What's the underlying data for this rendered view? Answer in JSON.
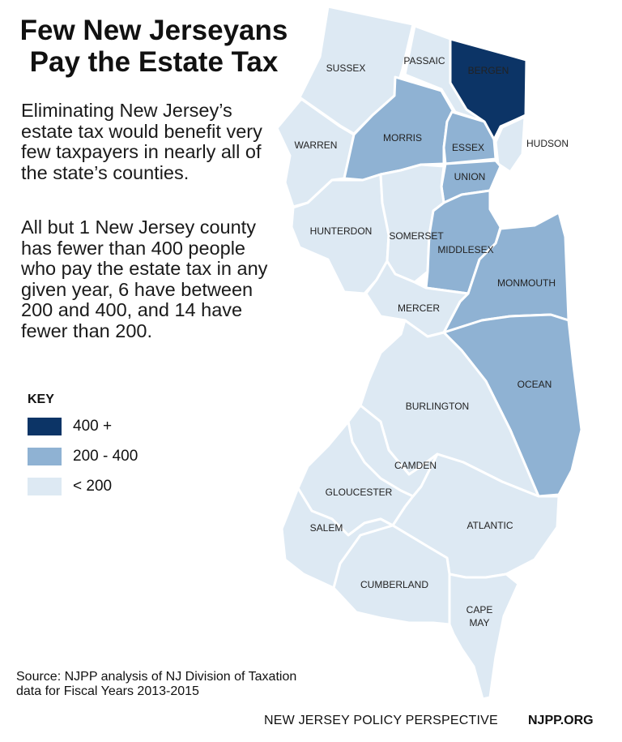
{
  "title_line1": "Few New Jerseyans",
  "title_line2": "Pay the Estate Tax",
  "intro": "Eliminating New Jersey’s estate tax would benefit very few taxpayers in nearly all of the state’s counties.",
  "detail": "All but 1 New Jersey county has fewer than 400 people who pay the estate tax in any given year, 6 have between 200 and 400, and 14 have fewer than 200.",
  "key": {
    "title": "KEY",
    "items": [
      {
        "label": "400 +",
        "color": "#0c3466"
      },
      {
        "label": "200 - 400",
        "color": "#8fb2d3"
      },
      {
        "label": "< 200",
        "color": "#dde9f3"
      }
    ]
  },
  "counties": {
    "sussex": {
      "name": "SUSSEX",
      "category": "< 200"
    },
    "passaic": {
      "name": "PASSAIC",
      "category": "< 200"
    },
    "bergen": {
      "name": "BERGEN",
      "category": "400 +"
    },
    "warren": {
      "name": "WARREN",
      "category": "< 200"
    },
    "morris": {
      "name": "MORRIS",
      "category": "200 - 400"
    },
    "essex": {
      "name": "ESSEX",
      "category": "200 - 400"
    },
    "hudson": {
      "name": "HUDSON",
      "category": "< 200"
    },
    "union": {
      "name": "UNION",
      "category": "200 - 400"
    },
    "hunterdon": {
      "name": "HUNTERDON",
      "category": "< 200"
    },
    "somerset": {
      "name": "SOMERSET",
      "category": "< 200"
    },
    "middlesex": {
      "name": "MIDDLESEX",
      "category": "200 - 400"
    },
    "monmouth": {
      "name": "MONMOUTH",
      "category": "200 - 400"
    },
    "mercer": {
      "name": "MERCER",
      "category": "< 200"
    },
    "ocean": {
      "name": "OCEAN",
      "category": "200 - 400"
    },
    "burlington": {
      "name": "BURLINGTON",
      "category": "< 200"
    },
    "camden": {
      "name": "CAMDEN",
      "category": "< 200"
    },
    "gloucester": {
      "name": "GLOUCESTER",
      "category": "< 200"
    },
    "salem": {
      "name": "SALEM",
      "category": "< 200"
    },
    "atlantic": {
      "name": "ATLANTIC",
      "category": "< 200"
    },
    "cumberland": {
      "name": "CUMBERLAND",
      "category": "< 200"
    },
    "cape_may": {
      "name_line1": "CAPE",
      "name_line2": "MAY",
      "category": "< 200"
    }
  },
  "source": "Source: NJPP analysis of NJ Division of Taxation data for Fiscal Years 2013-2015",
  "footer": {
    "org": "NEW JERSEY POLICY PERSPECTIVE",
    "url": "NJPP.ORG"
  }
}
